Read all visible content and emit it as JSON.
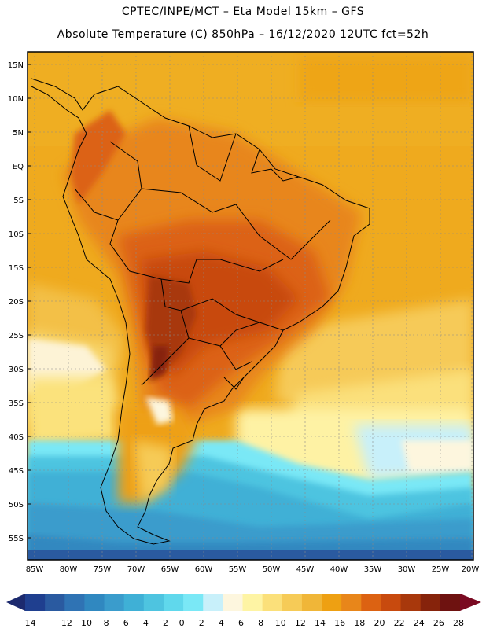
{
  "header": {
    "line1": "CPTEC/INPE/MCT –  Eta Model 15km – GFS",
    "line2": "Absolute Temperature (C) 850hPa – 16/12/2020 12UTC fct=52h"
  },
  "map": {
    "lat_labels": [
      "15N",
      "10N",
      "5N",
      "EQ",
      "5S",
      "10S",
      "15S",
      "20S",
      "25S",
      "30S",
      "35S",
      "40S",
      "45S",
      "50S",
      "55S"
    ],
    "lon_labels": [
      "85W",
      "80W",
      "75W",
      "70W",
      "65W",
      "60W",
      "55W",
      "50W",
      "45W",
      "40W",
      "35W",
      "30W",
      "25W",
      "20W"
    ]
  },
  "colorbar": {
    "labels": [
      "-14",
      "-12",
      "-10",
      "-8",
      "-6",
      "-4",
      "-2",
      "0",
      "2",
      "4",
      "6",
      "8",
      "10",
      "12",
      "14",
      "16",
      "18",
      "20",
      "22",
      "24",
      "26",
      "28"
    ],
    "colors": [
      "#1f3f8f",
      "#2a5aa0",
      "#2f73b4",
      "#3088c0",
      "#3a9ccc",
      "#3fb0d6",
      "#4ec4e0",
      "#60d8ec",
      "#7ae8f6",
      "#c8f0fa",
      "#fdf6de",
      "#fef4a4",
      "#fbe07a",
      "#f6cb57",
      "#f0b638",
      "#eea012",
      "#e8861a",
      "#dc6212",
      "#c84a0e",
      "#a8380c",
      "#86230b",
      "#6e1210"
    ],
    "low_color": "#1c2a6e",
    "high_color": "#7a0a22"
  }
}
